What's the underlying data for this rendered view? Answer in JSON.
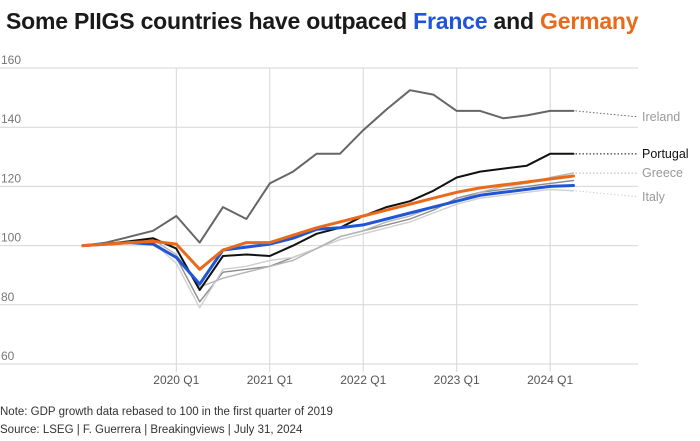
{
  "header": {
    "title_prefix": "Some PIIGS countries have outpaced ",
    "title_france": "France",
    "title_and": " and ",
    "title_germany": "Germany"
  },
  "footer": {
    "note": "Note: GDP growth data rebased to 100 in the first quarter of 2019",
    "source": "Source: LSEG | F. Guerrera | Breakingviews | July 31, 2024"
  },
  "colors": {
    "ireland": "#666666",
    "portugal": "#111111",
    "greece": "#b4b4b4",
    "italy": "#cfcfcf",
    "spain": "#8c8c8c",
    "france": "#1f55d6",
    "germany": "#ea6a1c"
  },
  "chart_data": {
    "type": "line",
    "title": "Some PIIGS countries have outpaced France and Germany",
    "ylim": [
      60,
      160
    ],
    "yticks": [
      60,
      80,
      100,
      120,
      140,
      160
    ],
    "xlim": [
      2019.0,
      2024.5
    ],
    "xticks": [
      {
        "x": 2020.0,
        "label": "2020 Q1"
      },
      {
        "x": 2021.0,
        "label": "2021 Q1"
      },
      {
        "x": 2022.0,
        "label": "2022 Q1"
      },
      {
        "x": 2023.0,
        "label": "2023 Q1"
      },
      {
        "x": 2024.0,
        "label": "2024 Q1"
      }
    ],
    "grid": true,
    "x": [
      2019.0,
      2019.25,
      2019.5,
      2019.75,
      2020.0,
      2020.25,
      2020.5,
      2020.75,
      2021.0,
      2021.25,
      2021.5,
      2021.75,
      2022.0,
      2022.25,
      2022.5,
      2022.75,
      2023.0,
      2023.25,
      2023.5,
      2023.75,
      2024.0,
      2024.25
    ],
    "series": [
      {
        "name": "",
        "key": "spain",
        "width": 1.4,
        "values": [
          100,
          100.5,
          101,
          101,
          96,
          81,
          91,
          92,
          93,
          96,
          99,
          103,
          105,
          107,
          109,
          112,
          116,
          118,
          119,
          120,
          121,
          122
        ]
      },
      {
        "name": "Italy",
        "key": "italy",
        "width": 1.4,
        "values": [
          100,
          100.5,
          100.8,
          101,
          94,
          79,
          92,
          93,
          95,
          96,
          99,
          102,
          104,
          106,
          108,
          111,
          114,
          116,
          117,
          118,
          119,
          118.5
        ]
      },
      {
        "name": "Greece",
        "key": "greece",
        "width": 1.4,
        "values": [
          100,
          100.5,
          101,
          102,
          97,
          86,
          89,
          91,
          93,
          95,
          99,
          103,
          105,
          108,
          110,
          113,
          115,
          118,
          120,
          121,
          123,
          124.5
        ]
      },
      {
        "name": "Ireland",
        "key": "ireland",
        "width": 2.0,
        "values": [
          100,
          101,
          103,
          105,
          110,
          101,
          113,
          109,
          121,
          125,
          131,
          131,
          139,
          146,
          152.5,
          151,
          145.5,
          145.5,
          143,
          144,
          145.5,
          145.5
        ]
      },
      {
        "name": "Portugal",
        "key": "portugal",
        "width": 2.0,
        "values": [
          100,
          100.5,
          101.5,
          102.5,
          99,
          85,
          96.5,
          97,
          96.5,
          100,
          104,
          106,
          110,
          113,
          115,
          118.5,
          123,
          125,
          126,
          127,
          131,
          131
        ]
      },
      {
        "name": "",
        "key": "france",
        "width": 3.0,
        "values": [
          100,
          100.5,
          101,
          100.5,
          96,
          87,
          98.5,
          99.5,
          100.5,
          102.5,
          105.5,
          106,
          107,
          109,
          111,
          113,
          115,
          117,
          118,
          119,
          120,
          120.3
        ]
      },
      {
        "name": "",
        "key": "germany",
        "width": 3.0,
        "values": [
          100,
          100.5,
          101,
          101.5,
          100.5,
          92,
          98.5,
          101,
          101,
          103.5,
          106,
          108,
          110,
          112,
          114,
          116,
          118,
          119.5,
          120.5,
          121.5,
          122.5,
          123.5
        ]
      }
    ],
    "labels": [
      {
        "key": "ireland",
        "text": "Ireland",
        "y": 143.5
      },
      {
        "key": "portugal",
        "text": "Portugal",
        "y": 131
      },
      {
        "key": "greece",
        "text": "Greece",
        "y": 124.5
      },
      {
        "key": "italy",
        "text": "Italy",
        "y": 116.5
      }
    ]
  }
}
